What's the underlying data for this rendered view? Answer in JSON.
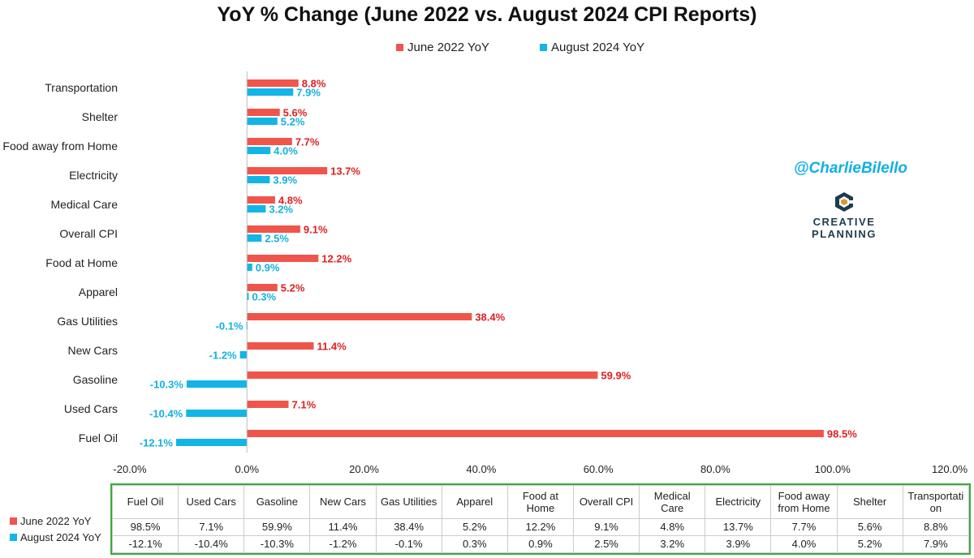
{
  "header": {
    "title": "YoY % Change (June 2022 vs. August 2024 CPI Reports)",
    "handle": "@CharlieBilello",
    "logo_line1": "CREATIVE",
    "logo_line2": "PLANNING"
  },
  "colors": {
    "june_2022": "#f0554b",
    "aug_2024": "#13b5e6",
    "june_label": "#e02020",
    "aug_label": "#12b0e0",
    "table_border": "#3aab3a"
  },
  "chart_data": {
    "type": "bar",
    "orientation": "horizontal",
    "title": "YoY % Change (June 2022 vs. August 2024 CPI Reports)",
    "categories": [
      "Fuel Oil",
      "Used Cars",
      "Gasoline",
      "New Cars",
      "Gas Utilities",
      "Apparel",
      "Food at Home",
      "Overall CPI",
      "Medical Care",
      "Electricity",
      "Food away from Home",
      "Shelter",
      "Transportation"
    ],
    "series": [
      {
        "name": "June 2022 YoY",
        "values": [
          98.5,
          7.1,
          59.9,
          11.4,
          38.4,
          5.2,
          12.2,
          9.1,
          4.8,
          13.7,
          7.7,
          5.6,
          8.8
        ]
      },
      {
        "name": "August 2024 YoY",
        "values": [
          -12.1,
          -10.4,
          -10.3,
          -1.2,
          -0.1,
          0.3,
          0.9,
          2.5,
          3.2,
          3.9,
          4.0,
          5.2,
          7.9
        ]
      }
    ],
    "xlim": [
      -20,
      120
    ],
    "xticks": [
      "-20.0%",
      "0.0%",
      "20.0%",
      "40.0%",
      "60.0%",
      "80.0%",
      "100.0%",
      "120.0%"
    ],
    "legend_position": "top",
    "grid": false
  },
  "table": {
    "headers": [
      "Fuel Oil",
      "Used Cars",
      "Gasoline",
      "New Cars",
      "Gas Utilities",
      "Apparel",
      "Food at Home",
      "Overall CPI",
      "Medical Care",
      "Electricity",
      "Food away from Home",
      "Shelter",
      "Transportati on"
    ],
    "rows": [
      {
        "label": "June 2022 YoY",
        "values": [
          "98.5%",
          "7.1%",
          "59.9%",
          "11.4%",
          "38.4%",
          "5.2%",
          "12.2%",
          "9.1%",
          "4.8%",
          "13.7%",
          "7.7%",
          "5.6%",
          "8.8%"
        ]
      },
      {
        "label": "August 2024 YoY",
        "values": [
          "-12.1%",
          "-10.4%",
          "-10.3%",
          "-1.2%",
          "-0.1%",
          "0.3%",
          "0.9%",
          "2.5%",
          "3.2%",
          "3.9%",
          "4.0%",
          "5.2%",
          "7.9%"
        ]
      }
    ]
  }
}
